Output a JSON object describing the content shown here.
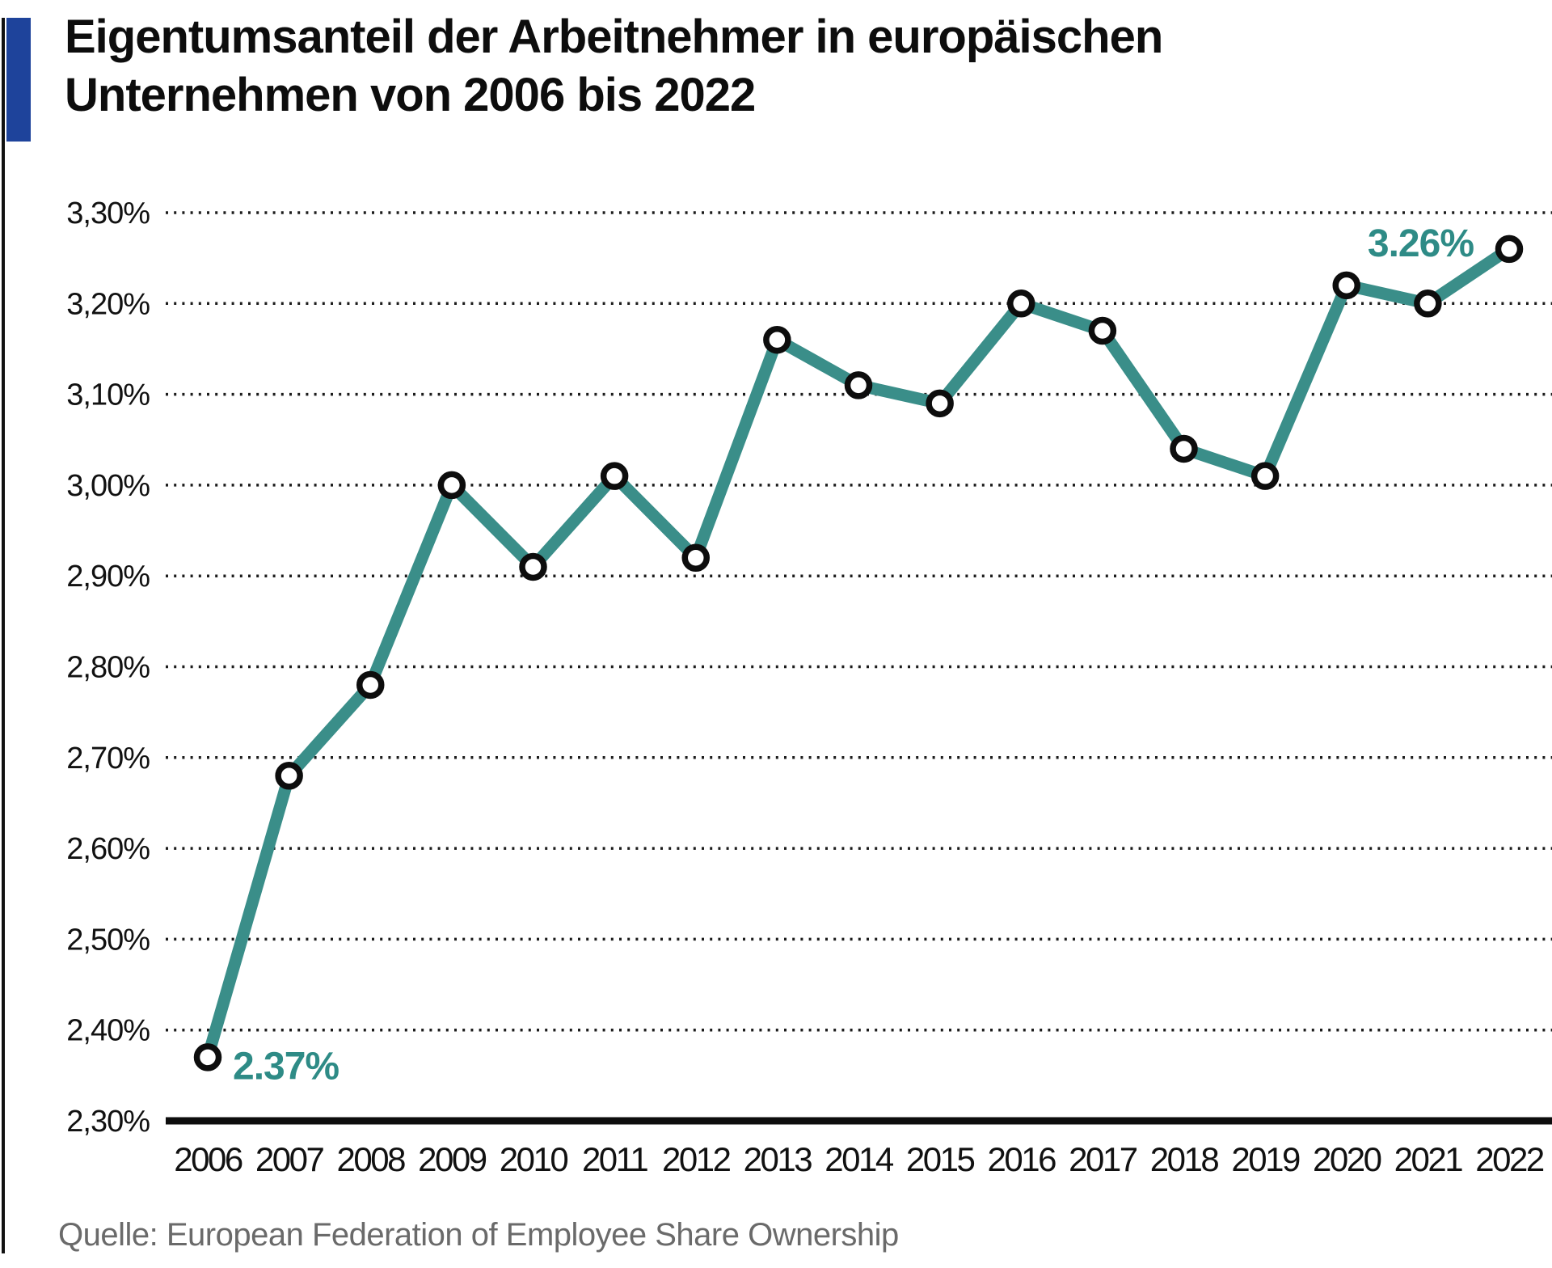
{
  "header": {
    "title_line1": "Eigentumsanteil der Arbeitnehmer in europäischen",
    "title_line2": "Unternehmen von 2006 bis 2022"
  },
  "footer": {
    "source": "Quelle: European Federation of Employee Share Ownership"
  },
  "colors": {
    "line": "#3a8e89",
    "accent_bar": "#1e439b",
    "grid": "#1c1c1c",
    "axis_line": "#0d0d0d",
    "marker_fill": "#ffffff",
    "marker_stroke": "#0d0d0d",
    "annotation_text": "#2e8b86",
    "title_text": "#0d0d0d",
    "source_text": "#6a6a6a"
  },
  "chart_data": {
    "type": "line",
    "title": "Eigentumsanteil der Arbeitnehmer in europäischen Unternehmen von 2006 bis 2022",
    "x": [
      2006,
      2007,
      2008,
      2009,
      2010,
      2011,
      2012,
      2013,
      2014,
      2015,
      2016,
      2017,
      2018,
      2019,
      2020,
      2021,
      2022
    ],
    "values": [
      2.37,
      2.68,
      2.78,
      3.0,
      2.91,
      3.01,
      2.92,
      3.16,
      3.11,
      3.09,
      3.2,
      3.17,
      3.04,
      3.01,
      3.22,
      3.2,
      3.26
    ],
    "unit": "%",
    "ylim": [
      2.3,
      3.3
    ],
    "yticks": [
      {
        "label": "3,30%",
        "value": 3.3
      },
      {
        "label": "3,20%",
        "value": 3.2
      },
      {
        "label": "3,10%",
        "value": 3.1
      },
      {
        "label": "3,00%",
        "value": 3.0
      },
      {
        "label": "2,90%",
        "value": 2.9
      },
      {
        "label": "2,80%",
        "value": 2.8
      },
      {
        "label": "2,70%",
        "value": 2.7
      },
      {
        "label": "2,60%",
        "value": 2.6
      },
      {
        "label": "2,50%",
        "value": 2.5
      },
      {
        "label": "2,40%",
        "value": 2.4
      },
      {
        "label": "2,30%",
        "value": 2.3
      }
    ],
    "xtick_labels": [
      "2006",
      "2007",
      "2008",
      "2009",
      "2010",
      "2011",
      "2012",
      "2013",
      "2014",
      "2015",
      "2016",
      "2017",
      "2018",
      "2019",
      "2020",
      "2021",
      "2022"
    ],
    "grid": "horizontal-dotted",
    "legend": "none",
    "annotations": [
      {
        "year": 2006,
        "text": "2.37%",
        "placement": "right"
      },
      {
        "year": 2022,
        "text": "3.26%",
        "placement": "above-left"
      }
    ]
  }
}
